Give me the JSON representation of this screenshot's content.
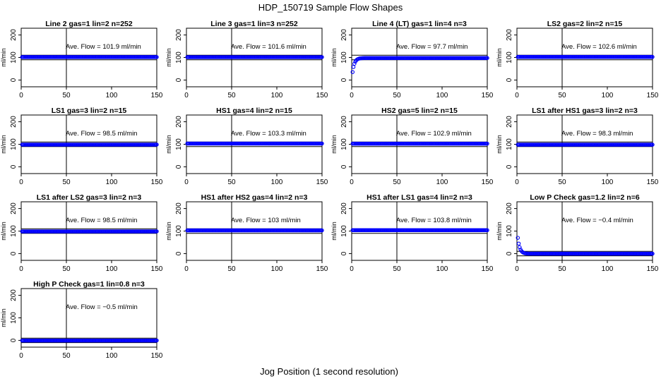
{
  "figure": {
    "title": "HDP_150719  Sample Flow Shapes",
    "xlabel": "Jog Position (1 second resolution)",
    "colors": {
      "points": "#0000ff",
      "frame": "#000000"
    }
  },
  "chart_data": [
    {
      "type": "scatter",
      "title": "Line 2 gas=1 lin=2 n=252",
      "annotation": "Ave. Flow =  101.9  ml/min",
      "ylabel": "ml/min",
      "xlim": [
        0,
        150
      ],
      "ylim": [
        -30,
        230
      ],
      "xticks": [
        0,
        50,
        100,
        150
      ],
      "yticks": [
        0,
        100,
        200
      ],
      "vline_x": 50,
      "hlines": [
        90,
        110
      ],
      "shape": {
        "kind": "flat",
        "level": 101.9
      }
    },
    {
      "type": "scatter",
      "title": "Line 3 gas=1 lin=3 n=252",
      "annotation": "Ave. Flow =  101.6  ml/min",
      "ylabel": "ml/min",
      "xlim": [
        0,
        150
      ],
      "ylim": [
        -30,
        230
      ],
      "xticks": [
        0,
        50,
        100,
        150
      ],
      "yticks": [
        0,
        100,
        200
      ],
      "vline_x": 50,
      "hlines": [
        90,
        110
      ],
      "shape": {
        "kind": "flat",
        "level": 101.6
      }
    },
    {
      "type": "scatter",
      "title": "Line 4 (LT) gas=1 lin=4 n=3",
      "annotation": "Ave. Flow =  97.7  ml/min",
      "ylabel": "ml/min",
      "xlim": [
        0,
        150
      ],
      "ylim": [
        -30,
        230
      ],
      "xticks": [
        0,
        50,
        100,
        150
      ],
      "yticks": [
        0,
        100,
        200
      ],
      "vline_x": 50,
      "hlines": [
        90,
        110
      ],
      "shape": {
        "kind": "rise",
        "start": 0,
        "level": 97.7,
        "rate": 0.45
      }
    },
    {
      "type": "scatter",
      "title": "LS2 gas=2 lin=2 n=15",
      "annotation": "Ave. Flow =  102.6  ml/min",
      "ylabel": "ml/min",
      "xlim": [
        0,
        150
      ],
      "ylim": [
        -30,
        230
      ],
      "xticks": [
        0,
        50,
        100,
        150
      ],
      "yticks": [
        0,
        100,
        200
      ],
      "vline_x": 50,
      "hlines": [
        90,
        110
      ],
      "shape": {
        "kind": "flat",
        "level": 102.6
      }
    },
    {
      "type": "scatter",
      "title": "LS1 gas=3 lin=2 n=15",
      "annotation": "Ave. Flow =  98.5  ml/min",
      "ylabel": "ml/min",
      "xlim": [
        0,
        150
      ],
      "ylim": [
        -30,
        230
      ],
      "xticks": [
        0,
        50,
        100,
        150
      ],
      "yticks": [
        0,
        100,
        200
      ],
      "vline_x": 50,
      "hlines": [
        90,
        110
      ],
      "shape": {
        "kind": "flat",
        "level": 98.5
      }
    },
    {
      "type": "scatter",
      "title": "HS1 gas=4 lin=2 n=15",
      "annotation": "Ave. Flow =  103.3  ml/min",
      "ylabel": "ml/min",
      "xlim": [
        0,
        150
      ],
      "ylim": [
        -30,
        230
      ],
      "xticks": [
        0,
        50,
        100,
        150
      ],
      "yticks": [
        0,
        100,
        200
      ],
      "vline_x": 50,
      "hlines": [
        90,
        110
      ],
      "shape": {
        "kind": "flat",
        "level": 103.3
      }
    },
    {
      "type": "scatter",
      "title": "HS2 gas=5 lin=2 n=15",
      "annotation": "Ave. Flow =  102.9  ml/min",
      "ylabel": "ml/min",
      "xlim": [
        0,
        150
      ],
      "ylim": [
        -30,
        230
      ],
      "xticks": [
        0,
        50,
        100,
        150
      ],
      "yticks": [
        0,
        100,
        200
      ],
      "vline_x": 50,
      "hlines": [
        90,
        110
      ],
      "shape": {
        "kind": "flat",
        "level": 102.9
      }
    },
    {
      "type": "scatter",
      "title": "LS1 after HS1 gas=3 lin=2 n=3",
      "annotation": "Ave. Flow =  98.3  ml/min",
      "ylabel": "ml/min",
      "xlim": [
        0,
        150
      ],
      "ylim": [
        -30,
        230
      ],
      "xticks": [
        0,
        50,
        100,
        150
      ],
      "yticks": [
        0,
        100,
        200
      ],
      "vline_x": 50,
      "hlines": [
        90,
        110
      ],
      "shape": {
        "kind": "flat",
        "level": 98.3
      }
    },
    {
      "type": "scatter",
      "title": "LS1 after LS2 gas=3 lin=2 n=3",
      "annotation": "Ave. Flow =  98.5  ml/min",
      "ylabel": "ml/min",
      "xlim": [
        0,
        150
      ],
      "ylim": [
        -30,
        230
      ],
      "xticks": [
        0,
        50,
        100,
        150
      ],
      "yticks": [
        0,
        100,
        200
      ],
      "vline_x": 50,
      "hlines": [
        90,
        110
      ],
      "shape": {
        "kind": "flat",
        "level": 98.5
      }
    },
    {
      "type": "scatter",
      "title": "HS1 after HS2 gas=4 lin=2 n=3",
      "annotation": "Ave. Flow =  103  ml/min",
      "ylabel": "ml/min",
      "xlim": [
        0,
        150
      ],
      "ylim": [
        -30,
        230
      ],
      "xticks": [
        0,
        50,
        100,
        150
      ],
      "yticks": [
        0,
        100,
        200
      ],
      "vline_x": 50,
      "hlines": [
        90,
        110
      ],
      "shape": {
        "kind": "flat",
        "level": 103
      }
    },
    {
      "type": "scatter",
      "title": "HS1 after LS1 gas=4 lin=2 n=3",
      "annotation": "Ave. Flow =  103.8  ml/min",
      "ylabel": "ml/min",
      "xlim": [
        0,
        150
      ],
      "ylim": [
        -30,
        230
      ],
      "xticks": [
        0,
        50,
        100,
        150
      ],
      "yticks": [
        0,
        100,
        200
      ],
      "vline_x": 50,
      "hlines": [
        90,
        110
      ],
      "shape": {
        "kind": "flat",
        "level": 103.8
      }
    },
    {
      "type": "scatter",
      "title": "Low P Check gas=1.2 lin=2 n=6",
      "annotation": "Ave. Flow =  −0.4  ml/min",
      "ylabel": "ml/min",
      "xlim": [
        0,
        150
      ],
      "ylim": [
        -30,
        230
      ],
      "xticks": [
        0,
        50,
        100,
        150
      ],
      "yticks": [
        0,
        100,
        200
      ],
      "vline_x": 50,
      "hlines": [
        -10,
        10
      ],
      "shape": {
        "kind": "decay",
        "start": 110,
        "level": -0.4,
        "rate": 0.45
      }
    },
    {
      "type": "scatter",
      "title": "High P Check gas=1 lin=0.8 n=3",
      "annotation": "Ave. Flow =  −0.5  ml/min",
      "ylabel": "ml/min",
      "xlim": [
        0,
        150
      ],
      "ylim": [
        -30,
        230
      ],
      "xticks": [
        0,
        50,
        100,
        150
      ],
      "yticks": [
        0,
        100,
        200
      ],
      "vline_x": 50,
      "hlines": [
        -10,
        10
      ],
      "shape": {
        "kind": "flat",
        "level": -0.5
      }
    }
  ]
}
